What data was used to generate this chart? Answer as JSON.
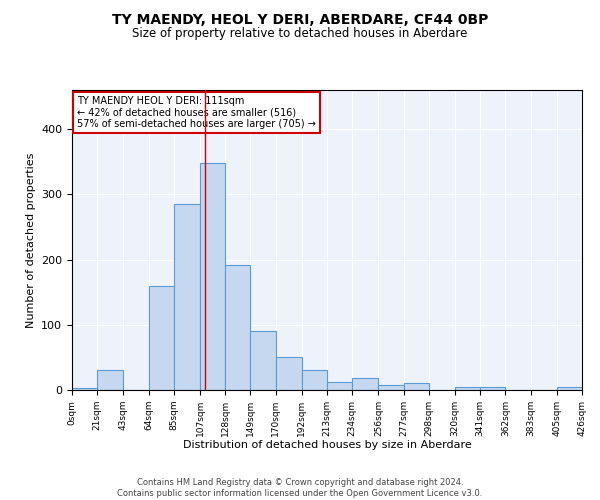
{
  "title": "TY MAENDY, HEOL Y DERI, ABERDARE, CF44 0BP",
  "subtitle": "Size of property relative to detached houses in Aberdare",
  "xlabel": "Distribution of detached houses by size in Aberdare",
  "ylabel": "Number of detached properties",
  "bar_color": "#c5d8f0",
  "bar_edge_color": "#5b9bd5",
  "background_color": "#eef2fb",
  "grid_color": "#ffffff",
  "bins": [
    0,
    21,
    43,
    64,
    85,
    107,
    128,
    149,
    170,
    192,
    213,
    234,
    256,
    277,
    298,
    320,
    341,
    362,
    383,
    405,
    426
  ],
  "counts": [
    3,
    30,
    0,
    160,
    285,
    348,
    192,
    90,
    50,
    30,
    13,
    18,
    7,
    10,
    0,
    5,
    5,
    0,
    0,
    4
  ],
  "tick_labels": [
    "0sqm",
    "21sqm",
    "43sqm",
    "64sqm",
    "85sqm",
    "107sqm",
    "128sqm",
    "149sqm",
    "170sqm",
    "192sqm",
    "213sqm",
    "234sqm",
    "256sqm",
    "277sqm",
    "298sqm",
    "320sqm",
    "341sqm",
    "362sqm",
    "383sqm",
    "405sqm",
    "426sqm"
  ],
  "vline_x": 111,
  "vline_color": "#cc0000",
  "annotation_text": "TY MAENDY HEOL Y DERI: 111sqm\n← 42% of detached houses are smaller (516)\n57% of semi-detached houses are larger (705) →",
  "annotation_box_color": "#ffffff",
  "annotation_box_edge": "#cc0000",
  "ylim": [
    0,
    460
  ],
  "footer": "Contains HM Land Registry data © Crown copyright and database right 2024.\nContains public sector information licensed under the Open Government Licence v3.0."
}
